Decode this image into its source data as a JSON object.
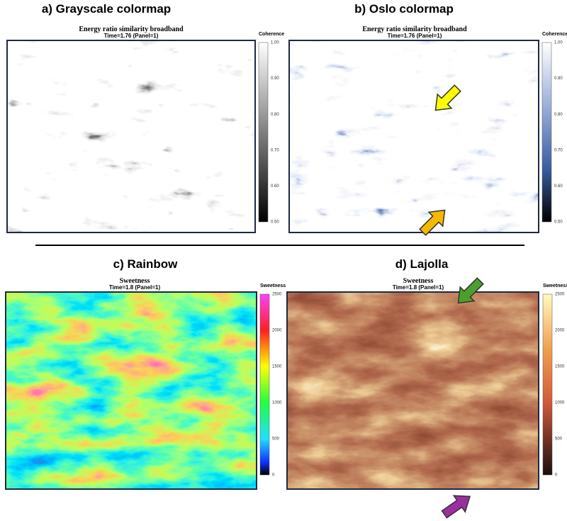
{
  "panels": [
    {
      "title": "a) Grayscale colormap",
      "subtitle": "Energy ratio similarity broadband",
      "time": "Time=1.76 (Panel=1)",
      "colorbar": {
        "label": "Coherence",
        "ticks": [
          "1.00",
          "0.90",
          "0.80",
          "0.70",
          "0.60",
          "0.50"
        ]
      }
    },
    {
      "title": "b) Oslo colormap",
      "subtitle": "Energy ratio similarity broadband",
      "time": "Time=1.76 (Panel=1)",
      "colorbar": {
        "label": "Coherence",
        "ticks": [
          "1.00",
          "0.90",
          "0.80",
          "0.70",
          "0.60",
          "0.50"
        ]
      }
    },
    {
      "title": "c) Rainbow",
      "subtitle": "Sweetness",
      "time": "Time=1.8 (Panel=1)",
      "colorbar": {
        "label": "Sweetness",
        "ticks": [
          "2500",
          "2000",
          "1500",
          "1000",
          "500",
          "0"
        ]
      }
    },
    {
      "title": "d) Lajolla",
      "subtitle": "Sweetness",
      "time": "Time=1.8 (Panel=1)",
      "colorbar": {
        "label": "Sweetness",
        "ticks": [
          "2500",
          "2000",
          "1500",
          "1000",
          "500",
          "0"
        ]
      }
    }
  ]
}
